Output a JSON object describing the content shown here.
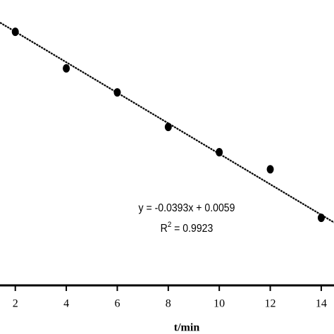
{
  "chart_data": {
    "type": "scatter",
    "x_label": "t/min",
    "x": [
      2,
      4,
      6,
      8,
      10,
      12,
      14
    ],
    "values": [
      -0.073,
      -0.167,
      -0.229,
      -0.318,
      -0.383,
      -0.427,
      -0.552
    ],
    "color": "#000000",
    "xlim": [
      1.4,
      14.5
    ],
    "xticks": [
      2,
      4,
      6,
      8,
      10,
      12,
      14
    ],
    "ylim": [
      -0.726,
      0.009
    ],
    "fit": {
      "slope": -0.0393,
      "intercept": 0.0059,
      "color": "#000000"
    },
    "equation": "y = -0.0393x + 0.0059",
    "r_squared": {
      "symbol": "R",
      "superscript": "2",
      "text": " = 0.9923"
    }
  }
}
